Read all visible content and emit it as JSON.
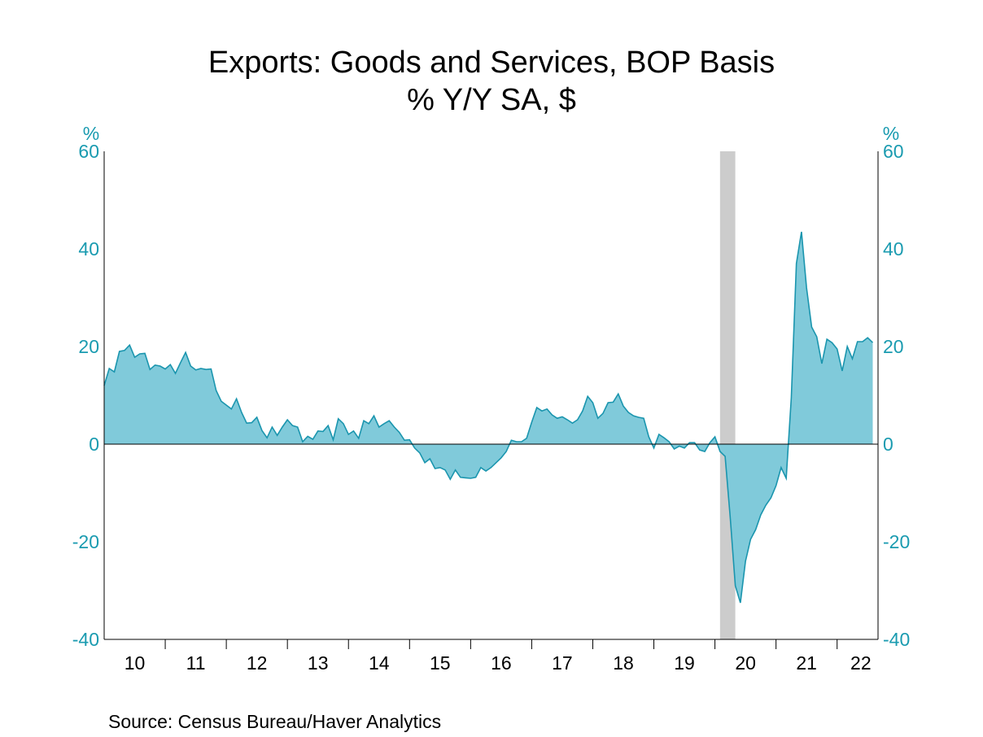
{
  "chart_data": {
    "type": "area",
    "title": "Exports: Goods and Services, BOP Basis",
    "subtitle": "% Y/Y   SA, $",
    "source": "Source:  Census Bureau/Haver Analytics",
    "y_unit_left": "%",
    "y_unit_right": "%",
    "ylim": [
      -40,
      60
    ],
    "y_ticks": [
      60,
      40,
      20,
      0,
      -20,
      -40
    ],
    "y_tick_labels": [
      "60",
      "40",
      "20",
      "0",
      "-20",
      "-40"
    ],
    "x_tick_labels": [
      "10",
      "11",
      "12",
      "13",
      "14",
      "15",
      "16",
      "17",
      "18",
      "19",
      "20",
      "21",
      "22"
    ],
    "x_start": "2010-01",
    "recession": {
      "start": "2020-02",
      "end": "2020-04"
    },
    "series": [
      {
        "values": [
          12.0,
          15.5,
          14.8,
          19.0,
          19.2,
          20.3,
          17.8,
          18.5,
          18.6,
          15.3,
          16.2,
          16.0,
          15.4,
          16.3,
          14.5,
          16.7,
          18.8,
          16.0,
          15.2,
          15.5,
          15.3,
          15.4,
          11.0,
          8.8,
          8.0,
          7.2,
          9.3,
          6.5,
          4.3,
          4.4,
          5.5,
          2.8,
          1.3,
          3.5,
          1.8,
          3.5,
          5.0,
          3.8,
          3.5,
          0.5,
          1.6,
          1.0,
          2.7,
          2.6,
          3.8,
          0.9,
          5.2,
          4.2,
          2.0,
          2.7,
          1.2,
          4.8,
          4.2,
          5.8,
          3.5,
          4.2,
          4.8,
          3.5,
          2.4,
          0.8,
          0.9,
          -0.8,
          -1.8,
          -3.8,
          -3.0,
          -5.0,
          -4.8,
          -5.3,
          -7.2,
          -5.3,
          -6.8,
          -6.9,
          -7.0,
          -6.8,
          -4.8,
          -5.5,
          -4.8,
          -3.8,
          -2.8,
          -1.5,
          0.8,
          0.5,
          0.5,
          1.2,
          4.5,
          7.5,
          6.8,
          7.2,
          6.0,
          5.3,
          5.6,
          5.0,
          4.3,
          5.0,
          6.8,
          9.8,
          8.5,
          5.3,
          6.3,
          8.5,
          8.6,
          10.3,
          7.8,
          6.5,
          5.8,
          5.5,
          5.3,
          1.5,
          -0.8,
          2.0,
          1.3,
          0.5,
          -1.0,
          -0.4,
          -0.8,
          0.3,
          0.3,
          -1.2,
          -1.5,
          0.3,
          1.5,
          -1.5,
          -2.5,
          -15.0,
          -29.0,
          -32.5,
          -24.0,
          -19.5,
          -17.5,
          -14.5,
          -12.5,
          -11.0,
          -8.5,
          -4.8,
          -7.0,
          9.5,
          37.0,
          43.5,
          32.0,
          24.0,
          22.0,
          16.5,
          21.5,
          20.8,
          19.5,
          15.0,
          20.0,
          17.5,
          21.0,
          21.0,
          21.8,
          20.8
        ]
      }
    ],
    "fill_color": "#80cada",
    "line_color": "#1a95ae",
    "recession_color": "#cccccc",
    "zero_line": true
  }
}
